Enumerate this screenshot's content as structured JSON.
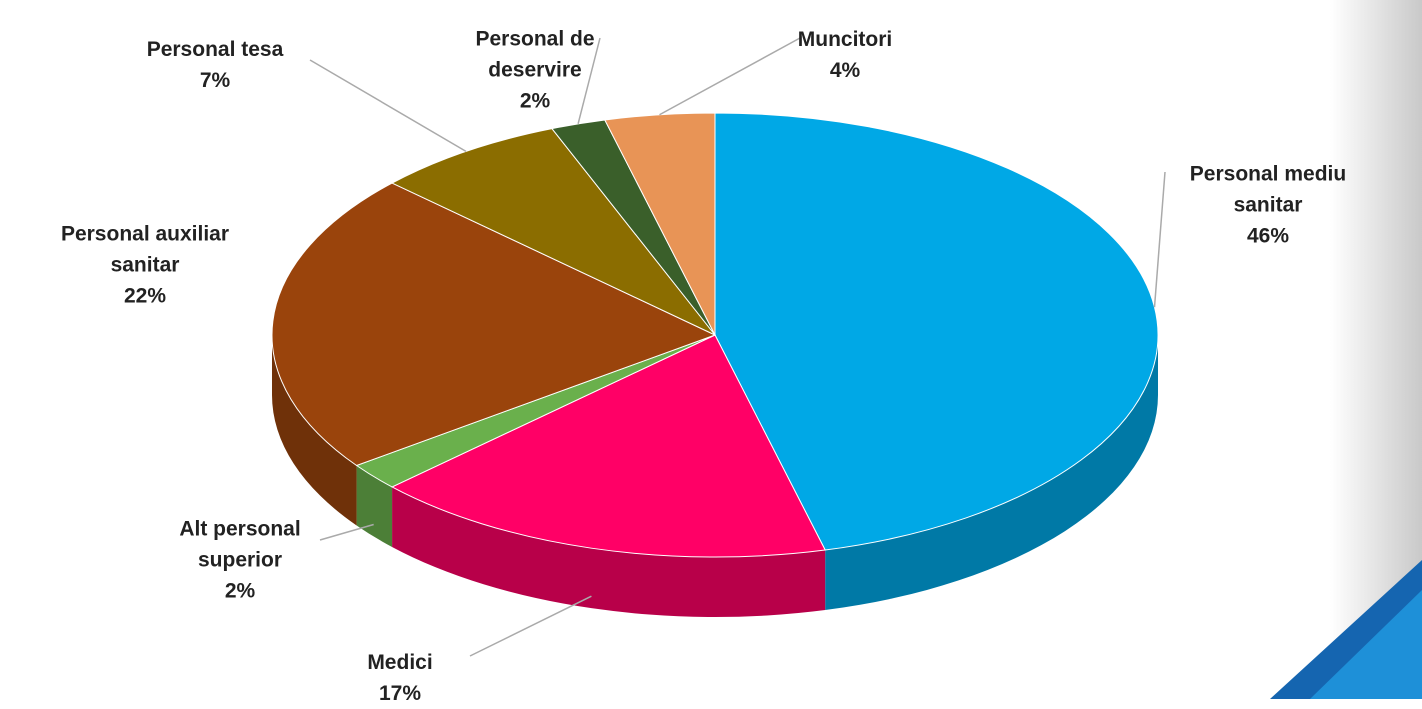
{
  "chart_data": {
    "type": "pie",
    "categories": [
      "Personal mediu sanitar",
      "Medici",
      "Alt personal superior",
      "Personal auxiliar sanitar",
      "Personal tesa",
      "Personal de deservire",
      "Muncitori"
    ],
    "values": [
      46,
      17,
      2,
      22,
      7,
      2,
      4
    ],
    "value_labels": [
      "46%",
      "17%",
      "2%",
      "22%",
      "7%",
      "2%",
      "4%"
    ],
    "colors": [
      "#00a8e6",
      "#ff0066",
      "#6ab04c",
      "#9a440c",
      "#8b6d00",
      "#3a5f2a",
      "#e89456"
    ]
  }
}
